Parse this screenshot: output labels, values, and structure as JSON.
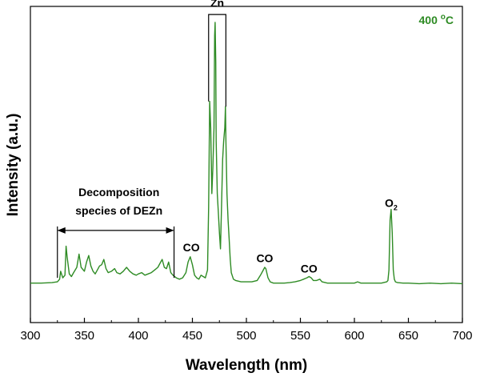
{
  "chart_data": {
    "type": "line",
    "title": "",
    "xlabel": "Wavelength (nm)",
    "ylabel": "Intensity (a.u.)",
    "xlim": [
      300,
      700
    ],
    "ylim": [
      0,
      100
    ],
    "xticks": [
      "300",
      "350",
      "400",
      "450",
      "500",
      "550",
      "600",
      "650",
      "700"
    ],
    "yticks_shown": false,
    "corner_label": {
      "text": "400 ",
      "degree": "o",
      "unit": "C"
    },
    "series": [
      {
        "name": "400 °C spectrum",
        "color": "#2e8b24",
        "x": [
          300,
          310,
          320,
          325,
          327,
          328,
          330,
          332,
          333,
          334,
          336,
          338,
          340,
          343,
          345,
          347,
          350,
          352,
          354,
          356,
          358,
          360,
          362,
          364,
          366,
          368,
          370,
          372,
          375,
          378,
          380,
          383,
          386,
          389,
          392,
          395,
          398,
          400,
          403,
          406,
          409,
          412,
          415,
          418,
          420,
          422,
          424,
          426,
          428,
          430,
          432,
          435,
          438,
          441,
          444,
          446,
          448,
          450,
          452,
          454,
          456,
          458,
          460,
          462,
          464,
          465,
          466,
          467,
          468,
          469,
          470,
          470.6,
          471,
          471.6,
          472,
          473,
          474,
          475,
          476,
          477,
          478,
          479,
          480,
          480.6,
          481,
          482,
          483,
          484,
          485,
          486,
          488,
          490,
          495,
          500,
          505,
          510,
          513,
          515,
          517,
          518,
          520,
          522,
          525,
          530,
          535,
          540,
          545,
          550,
          553,
          556,
          558,
          560,
          562,
          565,
          568,
          570,
          575,
          580,
          585,
          590,
          595,
          600,
          603,
          606,
          610,
          615,
          620,
          625,
          630,
          631,
          632,
          633,
          634,
          635,
          636,
          637,
          638,
          640,
          645,
          650,
          660,
          670,
          680,
          690,
          700
        ],
        "y": [
          1.0,
          1.0,
          1.2,
          1.5,
          2.5,
          5.5,
          3.0,
          4.0,
          15.0,
          11.0,
          4.5,
          3.5,
          5.0,
          7.0,
          12.0,
          7.0,
          5.5,
          9.0,
          11.5,
          7.5,
          5.5,
          4.5,
          6.0,
          7.5,
          8.0,
          10.0,
          6.5,
          5.0,
          5.5,
          6.5,
          5.0,
          4.5,
          5.5,
          7.0,
          5.5,
          4.5,
          4.0,
          4.5,
          5.0,
          4.0,
          4.5,
          5.0,
          6.0,
          7.0,
          8.5,
          10.0,
          7.0,
          6.5,
          9.0,
          5.0,
          4.0,
          3.0,
          2.5,
          3.0,
          5.0,
          9.0,
          11.0,
          8.0,
          4.0,
          3.0,
          2.5,
          4.0,
          3.5,
          3.0,
          6.0,
          30.0,
          70.0,
          60.0,
          35.0,
          45.0,
          60.0,
          95.0,
          100.0,
          85.0,
          55.0,
          35.0,
          28.0,
          20.0,
          14.0,
          30.0,
          48.0,
          55.0,
          60.0,
          68.0,
          55.0,
          35.0,
          25.0,
          18.0,
          10.0,
          5.0,
          2.5,
          2.0,
          1.5,
          1.5,
          1.5,
          2.0,
          4.0,
          5.5,
          7.0,
          6.5,
          3.0,
          1.5,
          1.0,
          1.0,
          1.0,
          1.2,
          1.5,
          2.0,
          2.5,
          3.0,
          3.5,
          3.0,
          2.0,
          2.0,
          2.5,
          1.5,
          1.0,
          1.0,
          1.0,
          1.0,
          1.0,
          1.0,
          1.5,
          1.0,
          1.0,
          1.0,
          1.0,
          1.0,
          1.5,
          2.0,
          6.0,
          25.0,
          29.0,
          20.0,
          6.0,
          2.5,
          1.5,
          1.2,
          1.0,
          1.0,
          0.8,
          1.0,
          0.8,
          1.0,
          0.8
        ]
      }
    ],
    "annotations": [
      {
        "text": "Decomposition",
        "x": 382,
        "y": 34
      },
      {
        "text": "species of DEZn",
        "x": 382,
        "y": 27
      },
      {
        "text": "CO",
        "x": 449,
        "y": 13
      },
      {
        "text": "Zn",
        "x": 473,
        "y": 106
      },
      {
        "text": "CO",
        "x": 517,
        "y": 9
      },
      {
        "text": "CO",
        "x": 558,
        "y": 5
      },
      {
        "text": "O",
        "sub": "2",
        "x": 634,
        "y": 30
      }
    ],
    "brackets": {
      "decomposition": {
        "x_start": 325,
        "x_end": 433,
        "y": 21
      },
      "zn": {
        "x_start": 465,
        "x_end": 481,
        "y": 103
      }
    }
  }
}
